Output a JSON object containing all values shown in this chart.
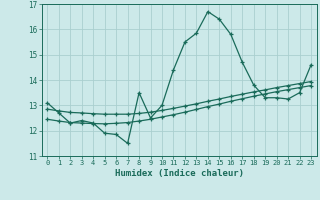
{
  "xlabel": "Humidex (Indice chaleur)",
  "xlim": [
    -0.5,
    23.5
  ],
  "ylim": [
    11,
    17
  ],
  "yticks": [
    11,
    12,
    13,
    14,
    15,
    16,
    17
  ],
  "xticks": [
    0,
    1,
    2,
    3,
    4,
    5,
    6,
    7,
    8,
    9,
    10,
    11,
    12,
    13,
    14,
    15,
    16,
    17,
    18,
    19,
    20,
    21,
    22,
    23
  ],
  "bg_color": "#cce9e9",
  "grid_color": "#aacfcf",
  "line_color": "#1a6b5a",
  "line1_x": [
    0,
    1,
    2,
    3,
    4,
    5,
    6,
    7,
    8,
    9,
    10,
    11,
    12,
    13,
    14,
    15,
    16,
    17,
    18,
    19,
    20,
    21,
    22,
    23
  ],
  "line1_y": [
    13.1,
    12.7,
    12.3,
    12.4,
    12.3,
    11.9,
    11.85,
    11.5,
    13.5,
    12.5,
    13.0,
    14.4,
    15.5,
    15.85,
    16.7,
    16.4,
    15.8,
    14.7,
    13.8,
    13.3,
    13.3,
    13.25,
    13.5,
    14.6
  ],
  "line2_x": [
    0,
    1,
    2,
    3,
    4,
    5,
    6,
    7,
    8,
    9,
    10,
    11,
    12,
    13,
    14,
    15,
    16,
    17,
    18,
    19,
    20,
    21,
    22,
    23
  ],
  "line2_y": [
    12.45,
    12.38,
    12.32,
    12.3,
    12.28,
    12.27,
    12.29,
    12.32,
    12.38,
    12.45,
    12.54,
    12.63,
    12.73,
    12.84,
    12.95,
    13.05,
    13.16,
    13.26,
    13.36,
    13.45,
    13.54,
    13.62,
    13.7,
    13.78
  ],
  "line3_x": [
    0,
    1,
    2,
    3,
    4,
    5,
    6,
    7,
    8,
    9,
    10,
    11,
    12,
    13,
    14,
    15,
    16,
    17,
    18,
    19,
    20,
    21,
    22,
    23
  ],
  "line3_y": [
    12.85,
    12.78,
    12.72,
    12.7,
    12.67,
    12.65,
    12.65,
    12.65,
    12.68,
    12.73,
    12.8,
    12.88,
    12.97,
    13.06,
    13.16,
    13.25,
    13.35,
    13.44,
    13.53,
    13.61,
    13.7,
    13.78,
    13.86,
    13.94
  ]
}
